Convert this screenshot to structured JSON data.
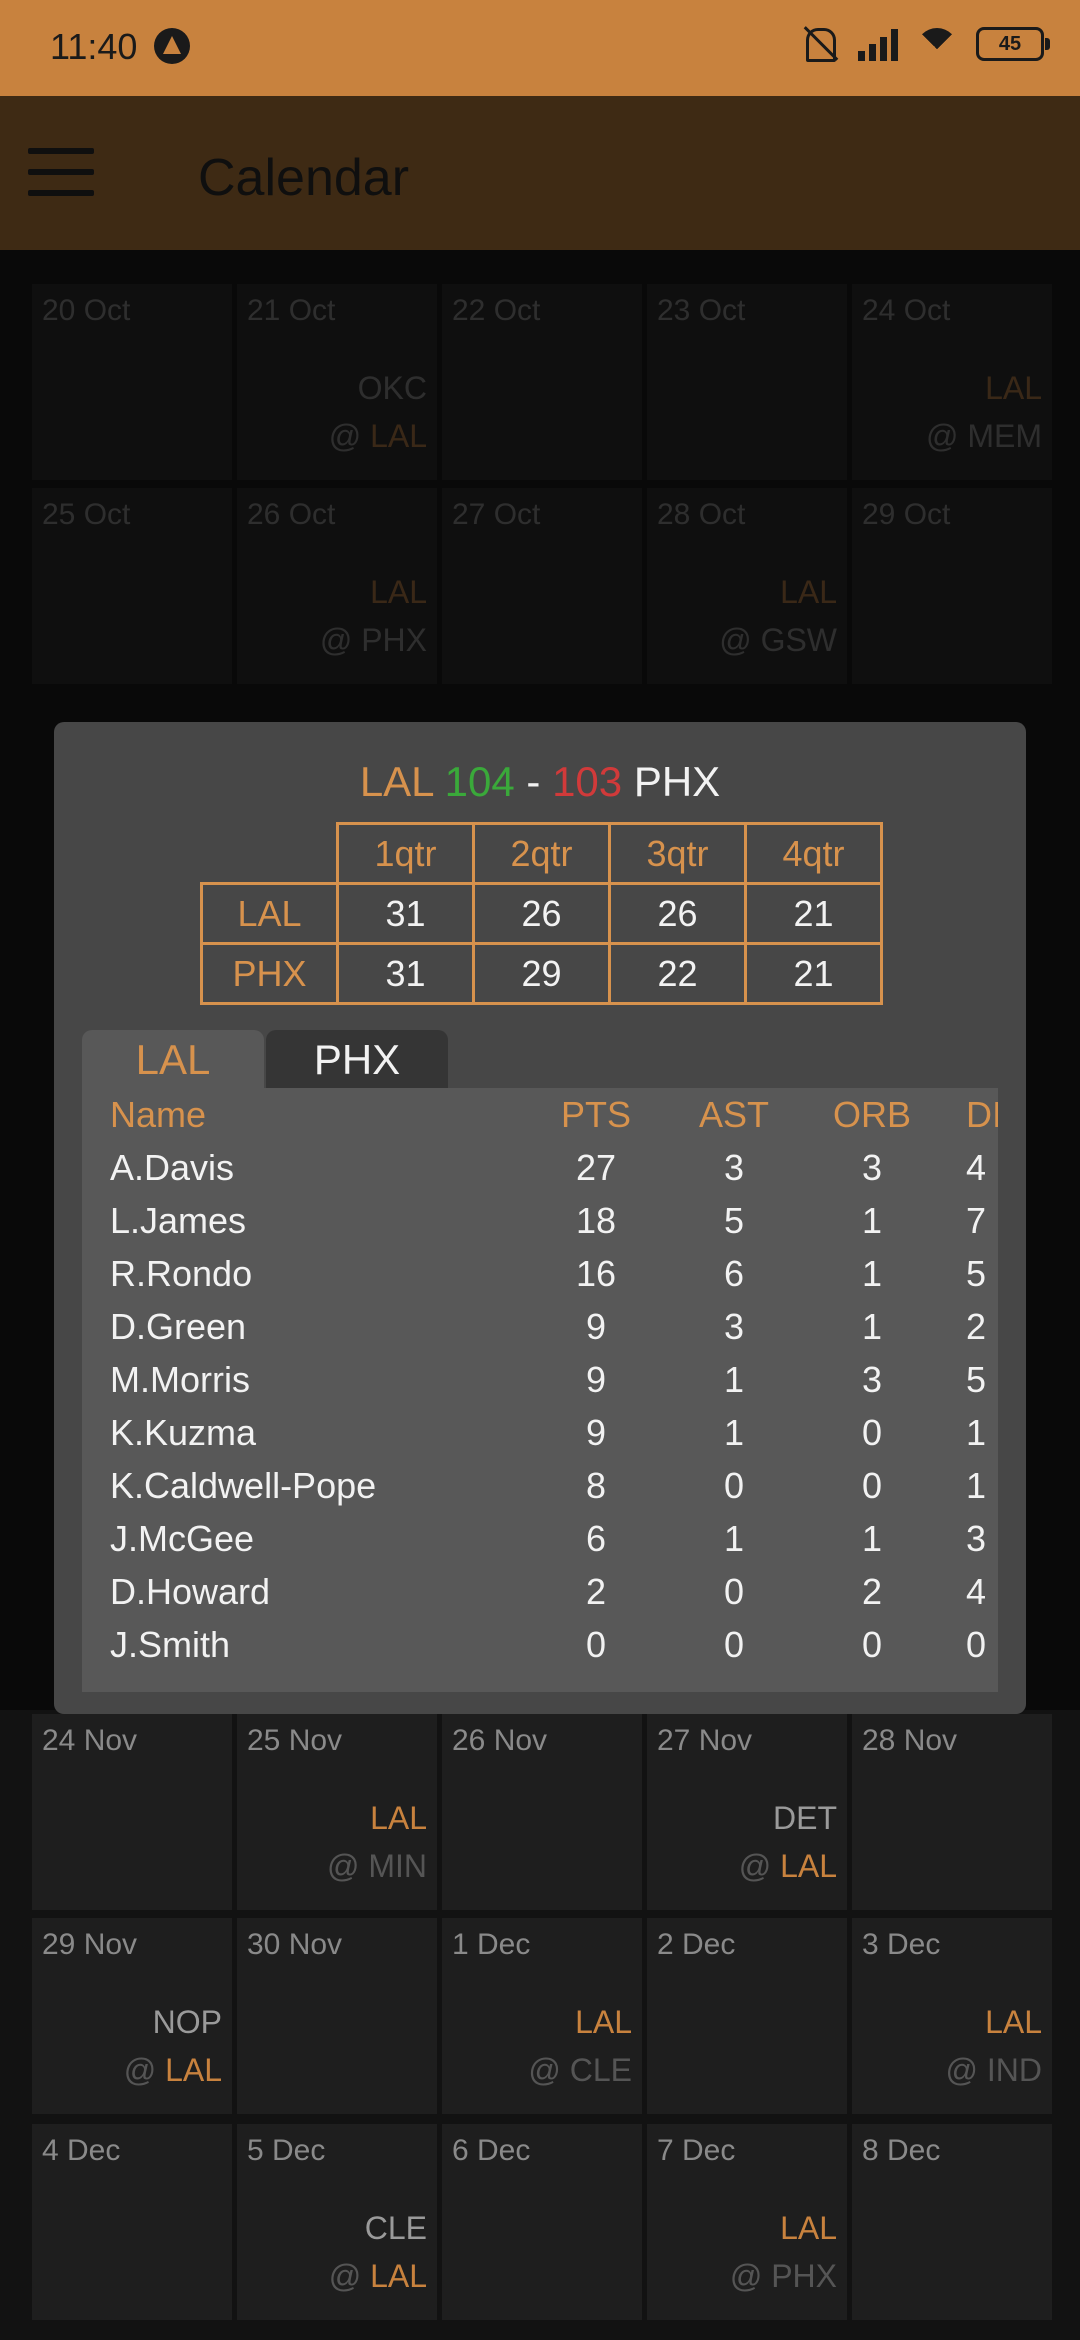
{
  "status_bar": {
    "time": "11:40",
    "battery": "45",
    "icons": [
      "app-icon",
      "mute-icon",
      "signal-icon",
      "wifi-icon",
      "battery-icon"
    ]
  },
  "app_bar": {
    "title": "Calendar",
    "menu_icon": "hamburger-menu-icon"
  },
  "calendar": {
    "rows": [
      {
        "cells": [
          {
            "date": "20 Oct",
            "opp": "",
            "line2_prefix": "",
            "line2_team": ""
          },
          {
            "date": "21 Oct",
            "opp": "OKC",
            "line2_prefix": "@",
            "line2_team": "LAL"
          },
          {
            "date": "22 Oct",
            "opp": "",
            "line2_prefix": "",
            "line2_team": ""
          },
          {
            "date": "23 Oct",
            "opp": "",
            "line2_prefix": "",
            "line2_team": ""
          },
          {
            "date": "24 Oct",
            "opp": "LAL",
            "line2_prefix": "@ MEM",
            "line2_team": ""
          }
        ]
      },
      {
        "cells": [
          {
            "date": "25 Oct",
            "opp": "",
            "line2_prefix": "",
            "line2_team": ""
          },
          {
            "date": "26 Oct",
            "opp": "LAL",
            "line2_prefix": "@ PHX",
            "line2_team": ""
          },
          {
            "date": "27 Oct",
            "opp": "",
            "line2_prefix": "",
            "line2_team": ""
          },
          {
            "date": "28 Oct",
            "opp": "LAL",
            "line2_prefix": "@ GSW",
            "line2_team": ""
          },
          {
            "date": "29 Oct",
            "opp": "",
            "line2_prefix": "",
            "line2_team": ""
          }
        ]
      },
      {
        "bright": true,
        "cells": [
          {
            "date": "24 Nov",
            "opp": "",
            "line2_prefix": "",
            "line2_team": ""
          },
          {
            "date": "25 Nov",
            "opp": "LAL",
            "line2_prefix": "@ MIN",
            "line2_team": ""
          },
          {
            "date": "26 Nov",
            "opp": "",
            "line2_prefix": "",
            "line2_team": ""
          },
          {
            "date": "27 Nov",
            "opp": "DET",
            "line2_prefix": "@",
            "line2_team": "LAL"
          },
          {
            "date": "28 Nov",
            "opp": "",
            "line2_prefix": "",
            "line2_team": ""
          }
        ]
      },
      {
        "bright": true,
        "cells": [
          {
            "date": "29 Nov",
            "opp": "NOP",
            "line2_prefix": "@",
            "line2_team": "LAL"
          },
          {
            "date": "30 Nov",
            "opp": "",
            "line2_prefix": "",
            "line2_team": ""
          },
          {
            "date": "1 Dec",
            "opp": "LAL",
            "line2_prefix": "@ CLE",
            "line2_team": ""
          },
          {
            "date": "2 Dec",
            "opp": "",
            "line2_prefix": "",
            "line2_team": ""
          },
          {
            "date": "3 Dec",
            "opp": "LAL",
            "line2_prefix": "@ IND",
            "line2_team": ""
          }
        ]
      },
      {
        "bright": true,
        "cells": [
          {
            "date": "4 Dec",
            "opp": "",
            "line2_prefix": "",
            "line2_team": ""
          },
          {
            "date": "5 Dec",
            "opp": "CLE",
            "line2_prefix": "@",
            "line2_team": "LAL"
          },
          {
            "date": "6 Dec",
            "opp": "",
            "line2_prefix": "",
            "line2_team": ""
          },
          {
            "date": "7 Dec",
            "opp": "LAL",
            "line2_prefix": "@ PHX",
            "line2_team": ""
          },
          {
            "date": "8 Dec",
            "opp": "",
            "line2_prefix": "",
            "line2_team": ""
          }
        ]
      }
    ]
  },
  "dialog": {
    "score": {
      "home": "LAL",
      "home_score": "104",
      "dash": "-",
      "away_score": "103",
      "away": "PHX"
    },
    "quarters": {
      "headers": [
        "1qtr",
        "2qtr",
        "3qtr",
        "4qtr"
      ],
      "rows": [
        {
          "team": "LAL",
          "values": [
            "31",
            "26",
            "26",
            "21"
          ]
        },
        {
          "team": "PHX",
          "values": [
            "31",
            "29",
            "22",
            "21"
          ]
        }
      ]
    },
    "tabs": [
      {
        "label": "LAL",
        "active": true
      },
      {
        "label": "PHX",
        "active": false
      }
    ],
    "stats": {
      "headers": {
        "name": "Name",
        "pts": "PTS",
        "ast": "AST",
        "orb": "ORB",
        "drb": "DI"
      },
      "rows": [
        {
          "name": "A.Davis",
          "pts": "27",
          "ast": "3",
          "orb": "3",
          "drb": "4"
        },
        {
          "name": "L.James",
          "pts": "18",
          "ast": "5",
          "orb": "1",
          "drb": "7"
        },
        {
          "name": "R.Rondo",
          "pts": "16",
          "ast": "6",
          "orb": "1",
          "drb": "5"
        },
        {
          "name": "D.Green",
          "pts": "9",
          "ast": "3",
          "orb": "1",
          "drb": "2"
        },
        {
          "name": "M.Morris",
          "pts": "9",
          "ast": "1",
          "orb": "3",
          "drb": "5"
        },
        {
          "name": "K.Kuzma",
          "pts": "9",
          "ast": "1",
          "orb": "0",
          "drb": "1"
        },
        {
          "name": "K.Caldwell-Pope",
          "pts": "8",
          "ast": "0",
          "orb": "0",
          "drb": "1"
        },
        {
          "name": "J.McGee",
          "pts": "6",
          "ast": "1",
          "orb": "1",
          "drb": "3"
        },
        {
          "name": "D.Howard",
          "pts": "2",
          "ast": "0",
          "orb": "2",
          "drb": "4"
        },
        {
          "name": "J.Smith",
          "pts": "0",
          "ast": "0",
          "orb": "0",
          "drb": "0"
        }
      ]
    }
  }
}
